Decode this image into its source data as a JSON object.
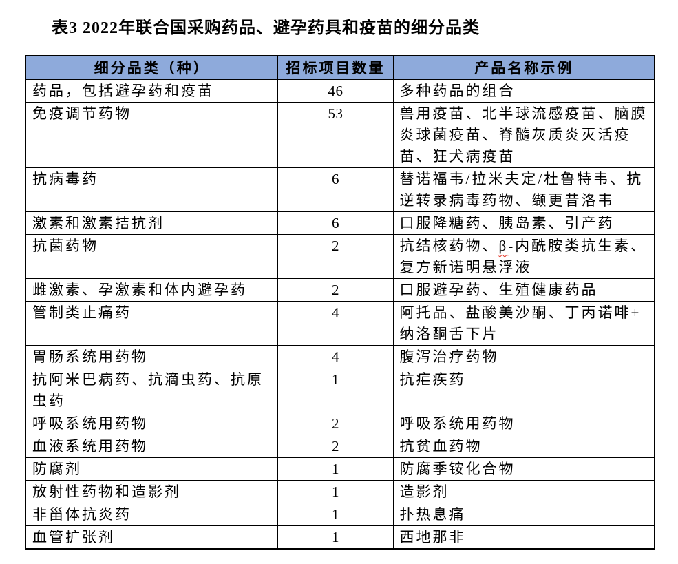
{
  "page": {
    "background_color": "#ffffff",
    "text_color": "#000000",
    "border_color": "#000000"
  },
  "title": "表3 2022年联合国采购药品、避孕药具和疫苗的细分品类",
  "table": {
    "header_bg": "#8EAADB",
    "columns": [
      "细分品类（种）",
      "招标项目数量",
      "产品名称示例"
    ],
    "rows": [
      {
        "category": "药品，包括避孕药和疫苗",
        "count": "46",
        "example": "多种药品的组合"
      },
      {
        "category": "免疫调节药物",
        "count": "53",
        "example": "兽用疫苗、北半球流感疫苗、脑膜\n炎球菌疫苗、脊髓灰质炎灭活疫\n苗、狂犬病疫苗"
      },
      {
        "category": "抗病毒药",
        "count": "6",
        "example": "替诺福韦/拉米夫定/杜鲁特韦、抗\n逆转录病毒药物、缬更昔洛韦"
      },
      {
        "category": "激素和激素拮抗剂",
        "count": "6",
        "example": "口服降糖药、胰岛素、引产药"
      },
      {
        "category": "抗菌药物",
        "count": "2",
        "example": "抗结核药物、β-内酰胺类抗生素、\n复方新诺明悬浮液",
        "spellcheck_marked": "β"
      },
      {
        "category": "雌激素、孕激素和体内避孕药",
        "count": "2",
        "example": "口服避孕药、生殖健康药品"
      },
      {
        "category": "管制类止痛药",
        "count": "4",
        "example": "阿托品、盐酸美沙酮、丁丙诺啡+\n纳洛酮舌下片"
      },
      {
        "category": "胃肠系统用药物",
        "count": "4",
        "example": "腹泻治疗药物"
      },
      {
        "category": "抗阿米巴病药、抗滴虫药、抗原\n虫药",
        "count": "1",
        "example": "抗疟疾药"
      },
      {
        "category": "呼吸系统用药物",
        "count": "2",
        "example": "呼吸系统用药物"
      },
      {
        "category": "血液系统用药物",
        "count": "2",
        "example": "抗贫血药物"
      },
      {
        "category": "防腐剂",
        "count": "1",
        "example": "防腐季铵化合物"
      },
      {
        "category": "放射性药物和造影剂",
        "count": "1",
        "example": "造影剂"
      },
      {
        "category": "非甾体抗炎药",
        "count": "1",
        "example": "扑热息痛"
      },
      {
        "category": "血管扩张剂",
        "count": "1",
        "example": "西地那非"
      }
    ]
  }
}
